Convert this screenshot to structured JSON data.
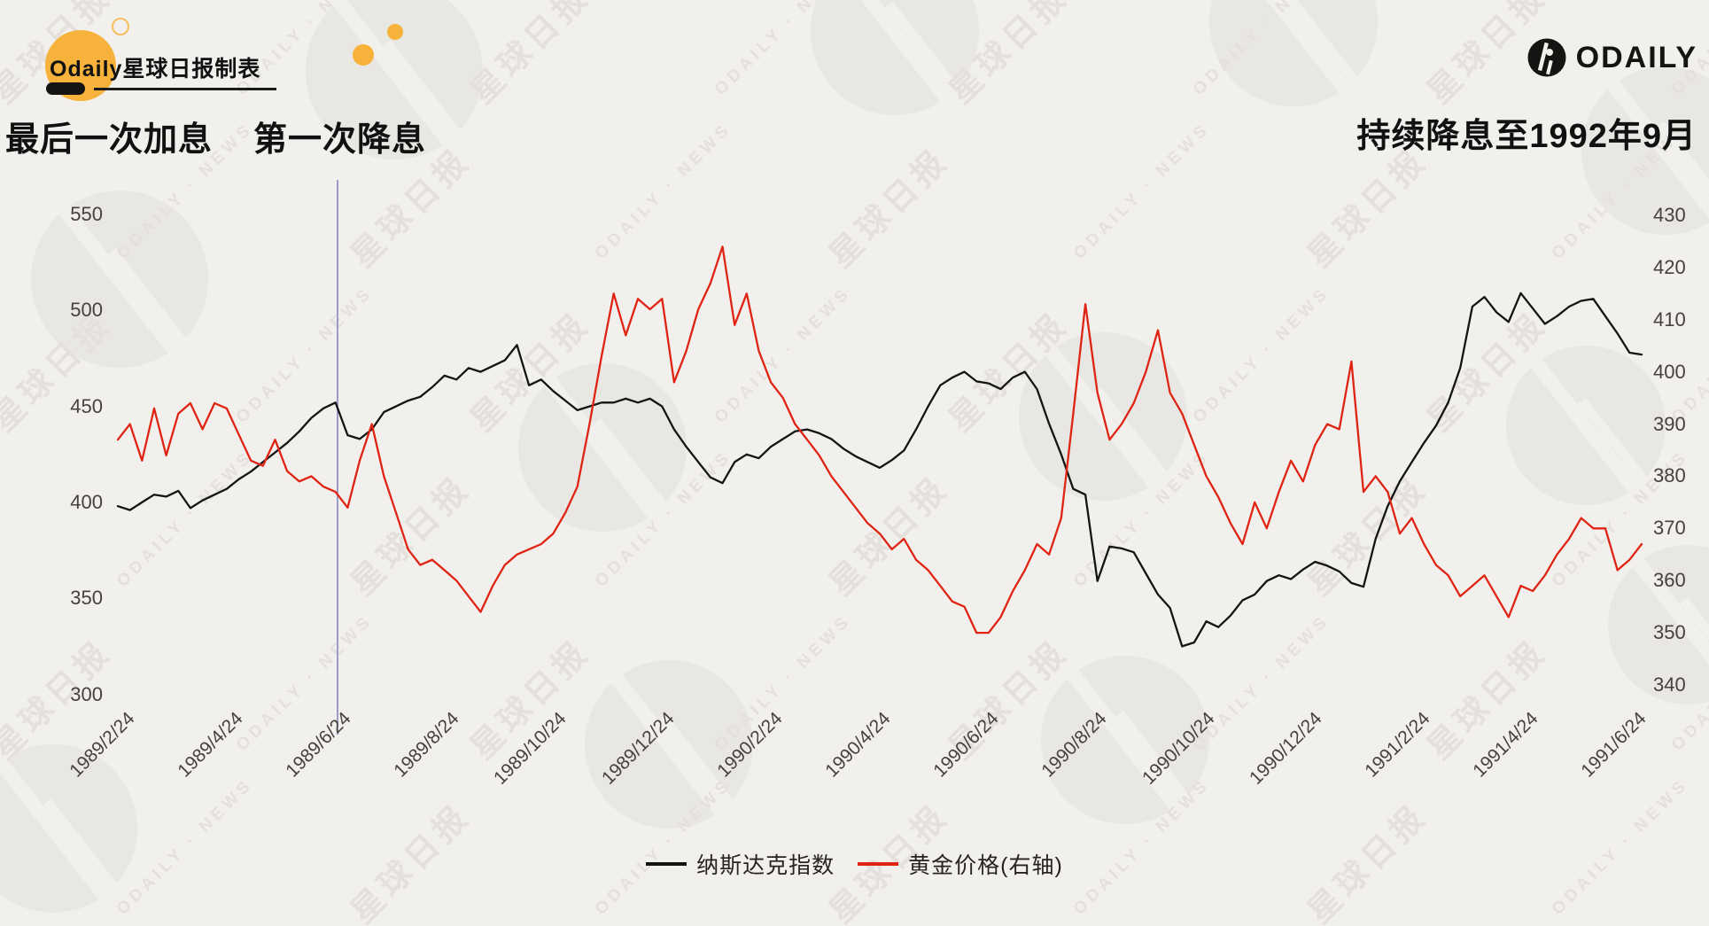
{
  "brand": {
    "maker_label": "Odaily星球日报制表",
    "logo_name": "ODAILY"
  },
  "annotations": {
    "last_hike": "最后一次加息",
    "first_cut": "第一次降息",
    "right_note": "持续降息至1992年9月"
  },
  "watermark": {
    "cjk": "星球日报",
    "latin": "ODAILY · NEWS"
  },
  "colors": {
    "background": "#f1f0ed",
    "nasdaq_line": "#141414",
    "gold_line": "#e02414",
    "annotation_line": "#9a9dc7",
    "brand_yellow": "#f6b23a",
    "axis_text": "#46413c"
  },
  "legend": [
    {
      "label": "纳斯达克指数",
      "color": "#141414"
    },
    {
      "label": "黄金价格(右轴)",
      "color": "#e02414"
    }
  ],
  "chart_data": {
    "type": "line",
    "sampling": "weekly samples read from plot, 1989/2/24 - 1991/7",
    "x_tick_labels": [
      "1989/2/24",
      "1989/4/24",
      "1989/6/24",
      "1989/8/24",
      "1989/10/24",
      "1989/12/24",
      "1990/2/24",
      "1990/4/24",
      "1990/6/24",
      "1990/8/24",
      "1990/10/24",
      "1990/12/24",
      "1991/2/24",
      "1991/4/24",
      "1991/6/24"
    ],
    "left_axis": {
      "series": "纳斯达克指数",
      "range": [
        300,
        550
      ],
      "ticks": [
        550,
        500,
        450,
        400,
        350,
        300
      ]
    },
    "right_axis": {
      "series": "黄金价格",
      "range": [
        340,
        430
      ],
      "ticks": [
        430,
        420,
        410,
        400,
        390,
        380,
        370,
        360,
        350,
        340
      ]
    },
    "annotation_vline_at": "1989/6/24",
    "grid": "off",
    "legend_position": "bottom-center",
    "series": [
      {
        "name": "纳斯达克指数",
        "axis": "left",
        "color": "#141414",
        "values": [
          398,
          396,
          400,
          404,
          403,
          406,
          397,
          401,
          404,
          407,
          412,
          416,
          421,
          426,
          431,
          437,
          444,
          449,
          452,
          435,
          433,
          438,
          447,
          450,
          453,
          455,
          460,
          466,
          464,
          470,
          468,
          471,
          474,
          482,
          461,
          464,
          458,
          453,
          448,
          450,
          452,
          452,
          454,
          452,
          454,
          450,
          438,
          429,
          421,
          413,
          410,
          421,
          425,
          423,
          429,
          433,
          437,
          438,
          436,
          433,
          428,
          424,
          421,
          418,
          422,
          427,
          438,
          450,
          461,
          465,
          468,
          463,
          462,
          459,
          465,
          468,
          459,
          441,
          425,
          407,
          404,
          359,
          377,
          376,
          374,
          363,
          352,
          345,
          325,
          327,
          338,
          335,
          341,
          349,
          352,
          359,
          362,
          360,
          365,
          369,
          367,
          364,
          358,
          356,
          381,
          398,
          411,
          421,
          431,
          440,
          452,
          470,
          502,
          507,
          499,
          494,
          509,
          501,
          493,
          497,
          502,
          505,
          506,
          497,
          488,
          478,
          477
        ]
      },
      {
        "name": "黄金价格(右轴)",
        "axis": "right",
        "color": "#e02414",
        "values": [
          387,
          390,
          383,
          393,
          384,
          392,
          394,
          389,
          394,
          393,
          388,
          383,
          382,
          387,
          381,
          379,
          380,
          378,
          377,
          374,
          383,
          390,
          380,
          373,
          366,
          363,
          364,
          362,
          360,
          357,
          354,
          359,
          363,
          365,
          366,
          367,
          369,
          373,
          378,
          390,
          403,
          415,
          407,
          414,
          412,
          414,
          398,
          404,
          412,
          417,
          424,
          409,
          415,
          404,
          398,
          395,
          390,
          387,
          384,
          380,
          377,
          374,
          371,
          369,
          366,
          368,
          364,
          362,
          359,
          356,
          355,
          350,
          350,
          353,
          358,
          362,
          367,
          365,
          372,
          392,
          413,
          396,
          387,
          390,
          394,
          400,
          408,
          396,
          392,
          386,
          380,
          376,
          371,
          367,
          375,
          370,
          377,
          383,
          379,
          386,
          390,
          389,
          402,
          377,
          380,
          377,
          369,
          372,
          367,
          363,
          361,
          357,
          359,
          361,
          357,
          353,
          359,
          358,
          361,
          365,
          368,
          372,
          370,
          370,
          362,
          364,
          367
        ]
      }
    ]
  }
}
